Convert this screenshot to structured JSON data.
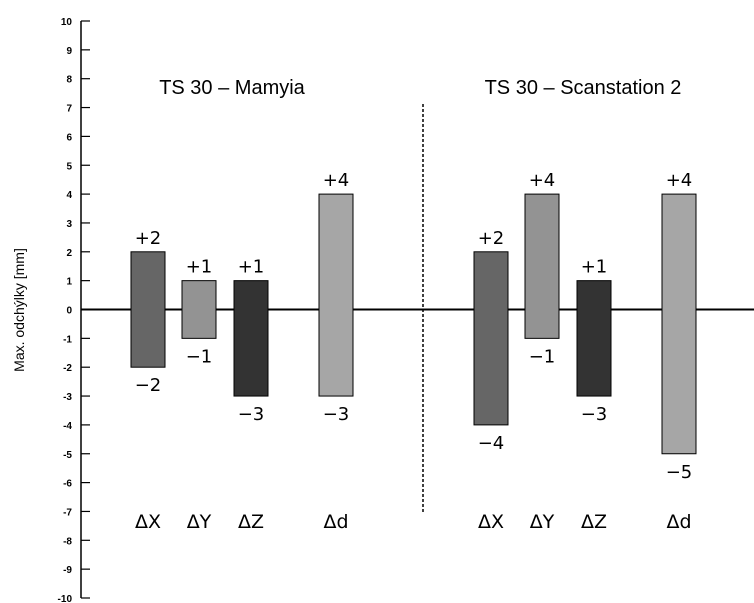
{
  "chart_data": {
    "type": "bar",
    "ylabel": "Max. odchýlky [mm]",
    "ylim": [
      -10,
      10
    ],
    "yticks": [
      "10",
      "9",
      "8",
      "7",
      "6",
      "5",
      "4",
      "3",
      "2",
      "1",
      "0",
      "-1",
      "-2",
      "-3",
      "-4",
      "-5",
      "-6",
      "-7",
      "-8",
      "-9",
      "-10"
    ],
    "grid": false,
    "groups": [
      {
        "title": "TS 30 – Mamyia",
        "categories": [
          "ΔX",
          "ΔY",
          "ΔZ",
          "Δd"
        ],
        "max": [
          2,
          1,
          1,
          4
        ],
        "min": [
          -2,
          -1,
          -3,
          -3
        ],
        "max_labels": [
          "+2",
          "+1",
          "+1",
          "+4"
        ],
        "min_labels": [
          "−2",
          "−1",
          "−3",
          "−3"
        ],
        "colors": [
          "#666666",
          "#939393",
          "#333333",
          "#a6a6a6"
        ]
      },
      {
        "title": "TS 30 – Scanstation 2",
        "categories": [
          "ΔX",
          "ΔY",
          "ΔZ",
          "Δd"
        ],
        "max": [
          2,
          4,
          1,
          4
        ],
        "min": [
          -4,
          -1,
          -3,
          -5
        ],
        "max_labels": [
          "+2",
          "+4",
          "+1",
          "+4"
        ],
        "min_labels": [
          "−4",
          "−1",
          "−3",
          "−5"
        ],
        "colors": [
          "#666666",
          "#939393",
          "#333333",
          "#a6a6a6"
        ]
      }
    ]
  }
}
